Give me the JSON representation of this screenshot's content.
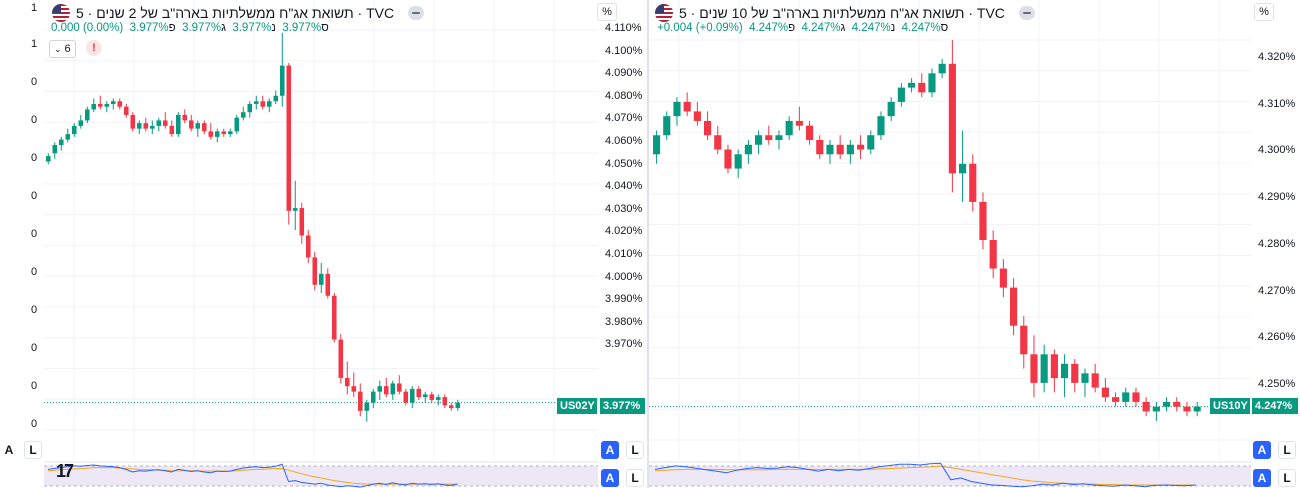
{
  "left_strip": {
    "ticks": [
      "1",
      "1",
      "0",
      "0",
      "0",
      "0",
      "0",
      "0",
      "0",
      "0",
      "0",
      "0"
    ],
    "bottom_buttons": [
      "A",
      "L"
    ]
  },
  "colors": {
    "up": "#089981",
    "down": "#f23645",
    "rsi": "#2962ff",
    "ma": "#f5a623",
    "band": "#ede7f6"
  },
  "panes": [
    {
      "id": "us02y",
      "title": "תשואת אג\"ח ממשלתיות בארה\"ב של 2 שנים · 5 · TVC",
      "flag_icon": "us-flag-icon",
      "ohlc": {
        "change": "0.000 (0.00%)",
        "o_label": "ס",
        "o": "3.977%",
        "h_label": "נ",
        "h": "3.977%",
        "l_label": "ג",
        "l": "3.977%",
        "c_label": "פ",
        "c": "3.977%"
      },
      "indicator_chip": "6",
      "warning_icon": "!",
      "pct_button": "%",
      "axis_labels": [
        "4.110%",
        "4.100%",
        "4.090%",
        "4.080%",
        "4.070%",
        "4.060%",
        "4.050%",
        "4.040%",
        "4.030%",
        "4.020%",
        "4.010%",
        "4.000%",
        "3.990%",
        "3.980%",
        "3.970%"
      ],
      "symbol_tag": "US02Y",
      "price_tag": "3.977%",
      "buttons": [
        "A",
        "L",
        "A",
        "L"
      ],
      "chart_data": {
        "type": "candlestick",
        "ylim": [
          3.967,
          4.113
        ],
        "last_price": 3.977,
        "candles": [
          [
            4.065,
            4.068,
            4.064,
            4.067
          ],
          [
            4.068,
            4.072,
            4.066,
            4.071
          ],
          [
            4.071,
            4.074,
            4.069,
            4.073
          ],
          [
            4.073,
            4.077,
            4.072,
            4.075
          ],
          [
            4.075,
            4.079,
            4.074,
            4.078
          ],
          [
            4.078,
            4.082,
            4.077,
            4.08
          ],
          [
            4.08,
            4.085,
            4.079,
            4.084
          ],
          [
            4.084,
            4.088,
            4.083,
            4.086
          ],
          [
            4.086,
            4.089,
            4.084,
            4.085
          ],
          [
            4.085,
            4.087,
            4.083,
            4.086
          ],
          [
            4.086,
            4.088,
            4.084,
            4.087
          ],
          [
            4.087,
            4.088,
            4.084,
            4.085
          ],
          [
            4.085,
            4.086,
            4.081,
            4.082
          ],
          [
            4.082,
            4.083,
            4.076,
            4.077
          ],
          [
            4.077,
            4.08,
            4.075,
            4.079
          ],
          [
            4.079,
            4.081,
            4.076,
            4.077
          ],
          [
            4.077,
            4.08,
            4.075,
            4.078
          ],
          [
            4.078,
            4.081,
            4.076,
            4.08
          ],
          [
            4.08,
            4.083,
            4.077,
            4.078
          ],
          [
            4.078,
            4.08,
            4.074,
            4.075
          ],
          [
            4.075,
            4.083,
            4.074,
            4.082
          ],
          [
            4.082,
            4.084,
            4.079,
            4.08
          ],
          [
            4.08,
            4.082,
            4.076,
            4.077
          ],
          [
            4.077,
            4.08,
            4.074,
            4.079
          ],
          [
            4.079,
            4.08,
            4.075,
            4.076
          ],
          [
            4.076,
            4.079,
            4.073,
            4.074
          ],
          [
            4.074,
            4.077,
            4.072,
            4.076
          ],
          [
            4.076,
            4.077,
            4.074,
            4.075
          ],
          [
            4.075,
            4.077,
            4.074,
            4.076
          ],
          [
            4.076,
            4.082,
            4.075,
            4.081
          ],
          [
            4.081,
            4.085,
            4.08,
            4.083
          ],
          [
            4.083,
            4.087,
            4.081,
            4.086
          ],
          [
            4.086,
            4.089,
            4.084,
            4.087
          ],
          [
            4.087,
            4.089,
            4.084,
            4.085
          ],
          [
            4.085,
            4.088,
            4.083,
            4.087
          ],
          [
            4.087,
            4.091,
            4.086,
            4.089
          ],
          [
            4.089,
            4.112,
            4.085,
            4.1
          ],
          [
            4.1,
            4.101,
            4.042,
            4.047
          ],
          [
            4.047,
            4.058,
            4.04,
            4.048
          ],
          [
            4.048,
            4.05,
            4.035,
            4.038
          ],
          [
            4.038,
            4.04,
            4.028,
            4.03
          ],
          [
            4.03,
            4.032,
            4.018,
            4.02
          ],
          [
            4.02,
            4.028,
            4.017,
            4.024
          ],
          [
            4.024,
            4.026,
            4.015,
            4.016
          ],
          [
            4.016,
            4.017,
            3.999,
            4.0
          ],
          [
            4.0,
            4.002,
            3.984,
            3.986
          ],
          [
            3.986,
            3.992,
            3.98,
            3.983
          ],
          [
            3.983,
            3.988,
            3.979,
            3.981
          ],
          [
            3.981,
            3.984,
            3.972,
            3.974
          ],
          [
            3.974,
            3.978,
            3.97,
            3.977
          ],
          [
            3.977,
            3.982,
            3.975,
            3.981
          ],
          [
            3.981,
            3.985,
            3.978,
            3.983
          ],
          [
            3.983,
            3.986,
            3.979,
            3.98
          ],
          [
            3.98,
            3.985,
            3.978,
            3.984
          ],
          [
            3.984,
            3.987,
            3.98,
            3.981
          ],
          [
            3.981,
            3.982,
            3.976,
            3.977
          ],
          [
            3.977,
            3.983,
            3.975,
            3.982
          ],
          [
            3.982,
            3.983,
            3.978,
            3.979
          ],
          [
            3.979,
            3.981,
            3.977,
            3.98
          ],
          [
            3.98,
            3.981,
            3.977,
            3.978
          ],
          [
            3.978,
            3.98,
            3.976,
            3.979
          ],
          [
            3.979,
            3.98,
            3.975,
            3.976
          ],
          [
            3.976,
            3.977,
            3.974,
            3.975
          ],
          [
            3.975,
            3.978,
            3.974,
            3.977
          ]
        ],
        "rsi": [
          58,
          60,
          62,
          64,
          66,
          65,
          67,
          68,
          66,
          65,
          64,
          62,
          58,
          52,
          55,
          54,
          56,
          57,
          55,
          52,
          58,
          56,
          53,
          55,
          52,
          50,
          54,
          53,
          54,
          58,
          61,
          63,
          64,
          62,
          63,
          65,
          70,
          30,
          32,
          28,
          26,
          24,
          26,
          22,
          20,
          18,
          20,
          19,
          17,
          20,
          24,
          26,
          23,
          27,
          24,
          22,
          26,
          24,
          25,
          23,
          25,
          22,
          21,
          24
        ],
        "rsi_ma": [
          55,
          56,
          57,
          58,
          59,
          60,
          61,
          62,
          62,
          62,
          62,
          61,
          60,
          59,
          58,
          57,
          57,
          56,
          56,
          55,
          55,
          55,
          55,
          55,
          54,
          54,
          54,
          54,
          54,
          55,
          56,
          57,
          58,
          58,
          59,
          60,
          60,
          56,
          52,
          48,
          44,
          41,
          38,
          35,
          32,
          30,
          28,
          26,
          25,
          24,
          24,
          24,
          24,
          24,
          24,
          24,
          24,
          24,
          24,
          24,
          24,
          24,
          24,
          24
        ]
      }
    },
    {
      "id": "us10y",
      "title": "תשואת אג\"ח ממשלתיות בארה\"ב של 10 שנים · 5 · TVC",
      "flag_icon": "us-flag-icon",
      "ohlc": {
        "change": "+0.004 (+0.09%)",
        "o_label": "ס",
        "o": "4.247%",
        "h_label": "נ",
        "h": "4.247%",
        "l_label": "ג",
        "l": "4.247%",
        "c_label": "פ",
        "c": "4.247%"
      },
      "pct_button": "%",
      "axis_labels": [
        "4.320%",
        "4.310%",
        "4.300%",
        "4.290%",
        "4.280%",
        "4.270%",
        "4.260%",
        "4.250%"
      ],
      "symbol_tag": "US10Y",
      "price_tag": "4.247%",
      "buttons": [
        "A",
        "L",
        "A",
        "L"
      ],
      "chart_data": {
        "type": "candlestick",
        "ylim": [
          4.24,
          4.324
        ],
        "last_price": 4.247,
        "candles": [
          [
            4.3,
            4.305,
            4.298,
            4.304
          ],
          [
            4.304,
            4.309,
            4.303,
            4.308
          ],
          [
            4.308,
            4.312,
            4.306,
            4.311
          ],
          [
            4.311,
            4.313,
            4.308,
            4.309
          ],
          [
            4.309,
            4.311,
            4.306,
            4.307
          ],
          [
            4.307,
            4.309,
            4.303,
            4.304
          ],
          [
            4.304,
            4.306,
            4.3,
            4.301
          ],
          [
            4.301,
            4.302,
            4.296,
            4.297
          ],
          [
            4.297,
            4.301,
            4.295,
            4.3
          ],
          [
            4.3,
            4.303,
            4.298,
            4.302
          ],
          [
            4.302,
            4.305,
            4.3,
            4.304
          ],
          [
            4.304,
            4.306,
            4.302,
            4.303
          ],
          [
            4.303,
            4.305,
            4.301,
            4.304
          ],
          [
            4.304,
            4.308,
            4.303,
            4.307
          ],
          [
            4.307,
            4.31,
            4.305,
            4.306
          ],
          [
            4.306,
            4.307,
            4.302,
            4.303
          ],
          [
            4.303,
            4.304,
            4.299,
            4.3
          ],
          [
            4.3,
            4.303,
            4.298,
            4.302
          ],
          [
            4.302,
            4.304,
            4.299,
            4.3
          ],
          [
            4.3,
            4.303,
            4.298,
            4.302
          ],
          [
            4.302,
            4.304,
            4.299,
            4.301
          ],
          [
            4.301,
            4.305,
            4.3,
            4.304
          ],
          [
            4.304,
            4.309,
            4.303,
            4.308
          ],
          [
            4.308,
            4.312,
            4.307,
            4.311
          ],
          [
            4.311,
            4.315,
            4.31,
            4.314
          ],
          [
            4.314,
            4.316,
            4.313,
            4.315
          ],
          [
            4.315,
            4.317,
            4.312,
            4.313
          ],
          [
            4.313,
            4.318,
            4.312,
            4.317
          ],
          [
            4.317,
            4.32,
            4.316,
            4.319
          ],
          [
            4.319,
            4.324,
            4.292,
            4.296
          ],
          [
            4.296,
            4.305,
            4.29,
            4.298
          ],
          [
            4.298,
            4.3,
            4.288,
            4.29
          ],
          [
            4.29,
            4.292,
            4.28,
            4.282
          ],
          [
            4.282,
            4.284,
            4.274,
            4.276
          ],
          [
            4.276,
            4.278,
            4.27,
            4.272
          ],
          [
            4.272,
            4.274,
            4.262,
            4.264
          ],
          [
            4.264,
            4.266,
            4.255,
            4.258
          ],
          [
            4.258,
            4.262,
            4.249,
            4.252
          ],
          [
            4.252,
            4.26,
            4.25,
            4.258
          ],
          [
            4.258,
            4.259,
            4.25,
            4.253
          ],
          [
            4.253,
            4.258,
            4.249,
            4.256
          ],
          [
            4.256,
            4.257,
            4.25,
            4.252
          ],
          [
            4.252,
            4.255,
            4.249,
            4.254
          ],
          [
            4.254,
            4.256,
            4.25,
            4.251
          ],
          [
            4.251,
            4.253,
            4.248,
            4.249
          ],
          [
            4.249,
            4.25,
            4.247,
            4.248
          ],
          [
            4.248,
            4.251,
            4.247,
            4.25
          ],
          [
            4.25,
            4.251,
            4.247,
            4.248
          ],
          [
            4.248,
            4.249,
            4.245,
            4.246
          ],
          [
            4.246,
            4.248,
            4.244,
            4.247
          ],
          [
            4.247,
            4.249,
            4.246,
            4.248
          ],
          [
            4.248,
            4.249,
            4.246,
            4.247
          ],
          [
            4.247,
            4.248,
            4.245,
            4.246
          ],
          [
            4.246,
            4.248,
            4.245,
            4.247
          ]
        ],
        "rsi": [
          58,
          62,
          66,
          64,
          61,
          57,
          54,
          50,
          56,
          60,
          62,
          60,
          61,
          64,
          62,
          58,
          54,
          58,
          55,
          58,
          56,
          60,
          64,
          67,
          70,
          70,
          68,
          71,
          72,
          34,
          38,
          30,
          26,
          22,
          21,
          19,
          18,
          20,
          24,
          22,
          26,
          23,
          25,
          22,
          20,
          19,
          22,
          20,
          18,
          21,
          22,
          21,
          20,
          22
        ],
        "rsi_ma": [
          55,
          56,
          57,
          58,
          58,
          58,
          58,
          57,
          57,
          57,
          57,
          57,
          58,
          58,
          58,
          58,
          58,
          58,
          58,
          58,
          58,
          58,
          59,
          60,
          61,
          62,
          63,
          64,
          65,
          62,
          58,
          54,
          50,
          46,
          42,
          38,
          34,
          31,
          29,
          27,
          26,
          25,
          24,
          24,
          23,
          23,
          22,
          22,
          22,
          22,
          22,
          22,
          22,
          22
        ]
      }
    }
  ]
}
